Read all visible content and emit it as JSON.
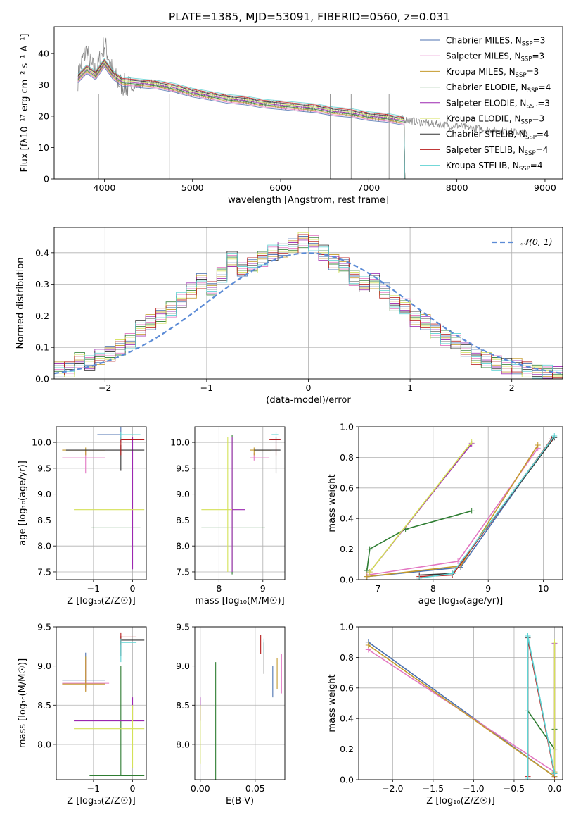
{
  "figure_title": "PLATE=1385, MJD=53091, FIBERID=0560, z=0.031",
  "series_styles": [
    {
      "name": "Chabrier MILES, N_SSP=3",
      "legend": "Chabrier MILES, N",
      "sub": "SSP",
      "tail": "=3",
      "color": "#4c72b0"
    },
    {
      "name": "Salpeter MILES, N_SSP=3",
      "legend": "Salpeter MILES, N",
      "sub": "SSP",
      "tail": "=3",
      "color": "#e377c2"
    },
    {
      "name": "Kroupa MILES, N_SSP=3",
      "legend": "Kroupa MILES, N",
      "sub": "SSP",
      "tail": "=3",
      "color": "#c49a2c"
    },
    {
      "name": "Chabrier ELODIE, N_SSP=4",
      "legend": "Chabrier ELODIE, N",
      "sub": "SSP",
      "tail": "=4",
      "color": "#2e7d32"
    },
    {
      "name": "Salpeter ELODIE, N_SSP=3",
      "legend": "Salpeter ELODIE, N",
      "sub": "SSP",
      "tail": "=3",
      "color": "#9c27b0"
    },
    {
      "name": "Kroupa ELODIE, N_SSP=3",
      "legend": "Kroupa ELODIE, N",
      "sub": "SSP",
      "tail": "=3",
      "color": "#d4e157"
    },
    {
      "name": "Chabrier STELIB, N_SSP=4",
      "legend": "Chabrier STELIB, N",
      "sub": "SSP",
      "tail": "=4",
      "color": "#333333"
    },
    {
      "name": "Salpeter STELIB, N_SSP=4",
      "legend": "Salpeter STELIB, N",
      "sub": "SSP",
      "tail": "=4",
      "color": "#b71c1c"
    },
    {
      "name": "Kroupa STELIB, N_SSP=4",
      "legend": "Kroupa STELIB, N",
      "sub": "SSP",
      "tail": "=4",
      "color": "#5fd3d3"
    }
  ],
  "chart_data": [
    {
      "id": "spectrum",
      "type": "line",
      "xlabel": "wavelength [Angstrom, rest frame]",
      "ylabel": "Flux [fλ10⁻¹⁷ erg cm⁻² s⁻¹ A⁻¹]",
      "xlim": [
        3430,
        9200
      ],
      "ylim": [
        0,
        48.5
      ],
      "xticks": [
        4000,
        5000,
        6000,
        7000,
        8000,
        9000
      ],
      "yticks": [
        0,
        10,
        20,
        30,
        40
      ],
      "data_color": "#7f7f7f",
      "data_x": [
        3700,
        3750,
        3800,
        3850,
        3900,
        3950,
        4000,
        4050,
        4100,
        4150,
        4200,
        4300,
        4400,
        4500,
        4600,
        4700,
        4800,
        4900,
        5000,
        5100,
        5200,
        5300,
        5400,
        5500,
        5600,
        5700,
        5800,
        5900,
        6000,
        6100,
        6200,
        6300,
        6400,
        6500,
        6600,
        6700,
        6800,
        6900,
        7000,
        7100,
        7200,
        7300,
        7400,
        7500,
        7600,
        7700,
        7800,
        7900,
        8000,
        8100,
        8200,
        8300,
        8400,
        8500,
        8600,
        8700,
        8800
      ],
      "data_y": [
        32,
        38,
        41,
        36,
        34,
        38,
        43,
        39,
        33,
        31,
        30,
        29,
        30,
        31,
        30,
        29,
        28.5,
        28,
        27.5,
        27,
        26.5,
        26,
        25.5,
        25,
        25,
        24.5,
        24,
        24,
        23.5,
        23,
        23,
        22.5,
        22.5,
        22,
        21.5,
        21,
        21,
        20.5,
        20,
        19.5,
        19.5,
        19,
        19,
        18.5,
        18,
        17.5,
        17.5,
        17,
        17,
        16.5,
        16,
        16,
        15.5,
        15.5,
        15,
        15,
        14.5
      ],
      "model_x": [
        3700,
        3800,
        3900,
        4000,
        4100,
        4200,
        4400,
        4600,
        4800,
        5000,
        5200,
        5400,
        5600,
        5800,
        6000,
        6200,
        6400,
        6600,
        6800,
        7000,
        7200,
        7300,
        7400,
        7410
      ],
      "model_y": [
        32,
        35,
        33,
        37,
        33,
        31,
        30.5,
        30,
        29,
        27.5,
        26.5,
        25.5,
        25,
        24,
        23.5,
        23,
        22.5,
        21.5,
        21,
        20,
        19.5,
        19,
        18.5,
        0
      ],
      "absorption_lines_x": [
        3934,
        4737,
        6563,
        6800,
        7230
      ]
    },
    {
      "id": "residuals",
      "type": "step",
      "xlabel": "(data-model)/error",
      "ylabel": "Normed distribution",
      "xlim": [
        -2.5,
        2.5
      ],
      "ylim": [
        0,
        0.48
      ],
      "xticks": [
        -2,
        -1,
        0,
        1,
        2
      ],
      "yticks": [
        0.0,
        0.1,
        0.2,
        0.3,
        0.4
      ],
      "legend": "𝒩(0, 1)",
      "normal_color": "#5b8bd6",
      "bin_width": 0.1,
      "bin_start": -2.5,
      "values": [
        0.03,
        0.03,
        0.06,
        0.05,
        0.07,
        0.08,
        0.1,
        0.12,
        0.16,
        0.18,
        0.2,
        0.22,
        0.25,
        0.28,
        0.31,
        0.29,
        0.33,
        0.38,
        0.35,
        0.36,
        0.38,
        0.4,
        0.41,
        0.42,
        0.44,
        0.43,
        0.4,
        0.37,
        0.36,
        0.32,
        0.3,
        0.31,
        0.28,
        0.24,
        0.23,
        0.19,
        0.18,
        0.15,
        0.13,
        0.12,
        0.09,
        0.07,
        0.06,
        0.05,
        0.04,
        0.04,
        0.03,
        0.02,
        0.02,
        0.015
      ]
    },
    {
      "id": "age_vs_Z",
      "type": "errorbar",
      "xlabel": "Z [log₁₀(Z/Z☉)]",
      "ylabel": "age  [log₁₀(age/yr)]",
      "xlim": [
        -1.95,
        0.35
      ],
      "ylim": [
        7.35,
        10.3
      ],
      "xticks": [
        -1,
        0
      ],
      "yticks": [
        7.5,
        8.0,
        8.5,
        9.0,
        9.5,
        10.0
      ],
      "points": [
        {
          "s": 0,
          "x": -0.3,
          "y": 10.15,
          "xe": [
            0.6,
            0.0
          ],
          "ye": [
            0.15,
            0.15
          ]
        },
        {
          "s": 1,
          "x": -1.2,
          "y": 9.7,
          "xe": [
            0.6,
            0.5
          ],
          "ye": [
            0.3,
            0.15
          ]
        },
        {
          "s": 2,
          "x": -1.2,
          "y": 9.85,
          "xe": [
            0.6,
            0.5
          ],
          "ye": [
            0.1,
            0.05
          ]
        },
        {
          "s": 3,
          "x": -1.05,
          "y": 8.35,
          "xe": [
            0.0,
            1.25
          ],
          "ye": [
            0.0,
            0.0
          ]
        },
        {
          "s": 4,
          "x": 0.0,
          "y": 10.05,
          "xe": [
            0.0,
            0.05
          ],
          "ye": [
            2.5,
            0.05
          ]
        },
        {
          "s": 5,
          "x": -1.5,
          "y": 8.7,
          "xe": [
            0.0,
            1.8
          ],
          "ye": [
            0.0,
            0.0
          ]
        },
        {
          "s": 6,
          "x": -0.3,
          "y": 9.85,
          "xe": [
            1.4,
            0.6
          ],
          "ye": [
            0.4,
            0.1
          ]
        },
        {
          "s": 7,
          "x": -0.3,
          "y": 10.05,
          "xe": [
            0.0,
            0.6
          ],
          "ye": [
            0.3,
            0.05
          ]
        },
        {
          "s": 8,
          "x": -0.3,
          "y": 10.15,
          "xe": [
            0.0,
            0.5
          ],
          "ye": [
            0.1,
            0.05
          ]
        }
      ]
    },
    {
      "id": "age_vs_mass",
      "type": "errorbar",
      "xlabel": "mass [log₁₀(M/M☉)]",
      "ylabel": "",
      "xlim": [
        7.45,
        9.5
      ],
      "ylim": [
        7.35,
        10.3
      ],
      "xticks": [
        8,
        9
      ],
      "yticks": [
        7.5,
        8.0,
        8.5,
        9.0,
        9.5,
        10.0
      ],
      "points": [
        {
          "s": 0,
          "x": 9.3,
          "y": 10.05,
          "xe": [
            0.1,
            0.1
          ],
          "ye": [
            0.1,
            0.05
          ]
        },
        {
          "s": 1,
          "x": 8.8,
          "y": 9.7,
          "xe": [
            0.1,
            0.35
          ],
          "ye": [
            0.05,
            0.1
          ]
        },
        {
          "s": 2,
          "x": 8.8,
          "y": 9.85,
          "xe": [
            0.1,
            0.4
          ],
          "ye": [
            0.1,
            0.05
          ]
        },
        {
          "s": 3,
          "x": 8.3,
          "y": 8.35,
          "xe": [
            0.7,
            0.75
          ],
          "ye": [
            0.9,
            1.8
          ]
        },
        {
          "s": 4,
          "x": 8.3,
          "y": 8.7,
          "xe": [
            0.0,
            0.3
          ],
          "ye": [
            1.2,
            1.4
          ]
        },
        {
          "s": 5,
          "x": 8.2,
          "y": 8.7,
          "xe": [
            0.6,
            0.1
          ],
          "ye": [
            1.2,
            1.4
          ]
        },
        {
          "s": 6,
          "x": 9.3,
          "y": 9.85,
          "xe": [
            0.5,
            0.1
          ],
          "ye": [
            0.45,
            0.1
          ]
        },
        {
          "s": 7,
          "x": 9.3,
          "y": 10.05,
          "xe": [
            0.15,
            0.1
          ],
          "ye": [
            0.3,
            0.05
          ]
        },
        {
          "s": 8,
          "x": 9.3,
          "y": 10.15,
          "xe": [
            0.1,
            0.05
          ],
          "ye": [
            0.1,
            0.05
          ]
        }
      ]
    },
    {
      "id": "mass_weight_vs_age",
      "type": "line",
      "xlabel": "age  [log₁₀(age/yr)]",
      "ylabel": "mass weight",
      "xlim": [
        6.65,
        10.35
      ],
      "ylim": [
        0,
        1.0
      ],
      "xticks": [
        7,
        8,
        9,
        10
      ],
      "yticks": [
        0.0,
        0.2,
        0.4,
        0.6,
        0.8,
        1.0
      ],
      "series": [
        {
          "s": 0,
          "x": [
            6.8,
            8.5,
            10.15
          ],
          "y": [
            0.02,
            0.08,
            0.92
          ]
        },
        {
          "s": 1,
          "x": [
            6.8,
            8.45,
            9.9
          ],
          "y": [
            0.03,
            0.12,
            0.86
          ]
        },
        {
          "s": 2,
          "x": [
            6.8,
            8.5,
            9.9
          ],
          "y": [
            0.02,
            0.09,
            0.88
          ]
        },
        {
          "s": 3,
          "x": [
            6.8,
            6.85,
            7.5,
            8.7
          ],
          "y": [
            0.06,
            0.2,
            0.33,
            0.45
          ]
        },
        {
          "s": 4,
          "x": [
            6.85,
            8.7
          ],
          "y": [
            0.05,
            0.89
          ]
        },
        {
          "s": 5,
          "x": [
            6.85,
            8.7
          ],
          "y": [
            0.05,
            0.9
          ]
        },
        {
          "s": 6,
          "x": [
            7.75,
            8.35,
            10.2
          ],
          "y": [
            0.03,
            0.04,
            0.93
          ]
        },
        {
          "s": 7,
          "x": [
            7.75,
            8.35,
            10.15
          ],
          "y": [
            0.02,
            0.03,
            0.92
          ]
        },
        {
          "s": 8,
          "x": [
            7.75,
            8.35,
            10.2
          ],
          "y": [
            0.01,
            0.04,
            0.94
          ]
        }
      ]
    },
    {
      "id": "mass_vs_Z",
      "type": "errorbar",
      "xlabel": "Z [log₁₀(Z/Z☉)]",
      "ylabel": "mass [log₁₀(M/M☉)]",
      "xlim": [
        -1.95,
        0.35
      ],
      "ylim": [
        7.55,
        9.5
      ],
      "xticks": [
        -1,
        0
      ],
      "yticks": [
        8.0,
        8.5,
        9.0,
        9.5
      ],
      "points": [
        {
          "s": 0,
          "x": -1.2,
          "y": 8.82,
          "xe": [
            0.6,
            0.5
          ],
          "ye": [
            0.1,
            0.35
          ]
        },
        {
          "s": 1,
          "x": -1.2,
          "y": 8.78,
          "xe": [
            0.6,
            0.6
          ],
          "ye": [
            0.1,
            0.3
          ]
        },
        {
          "s": 2,
          "x": -1.2,
          "y": 8.77,
          "xe": [
            0.6,
            0.5
          ],
          "ye": [
            0.1,
            0.35
          ]
        },
        {
          "s": 3,
          "x": -0.3,
          "y": 7.6,
          "xe": [
            0.8,
            0.6
          ],
          "ye": [
            0.0,
            1.4
          ]
        },
        {
          "s": 4,
          "x": 0.0,
          "y": 8.3,
          "xe": [
            1.5,
            0.3
          ],
          "ye": [
            0.0,
            0.3
          ]
        },
        {
          "s": 5,
          "x": 0.0,
          "y": 8.2,
          "xe": [
            1.5,
            0.3
          ],
          "ye": [
            0.5,
            0.3
          ]
        },
        {
          "s": 6,
          "x": -0.3,
          "y": 9.33,
          "xe": [
            0.0,
            0.6
          ],
          "ye": [
            0.2,
            0.05
          ]
        },
        {
          "s": 7,
          "x": -0.3,
          "y": 9.37,
          "xe": [
            0.0,
            0.4
          ],
          "ye": [
            0.1,
            0.05
          ]
        },
        {
          "s": 8,
          "x": -0.3,
          "y": 9.3,
          "xe": [
            0.0,
            0.4
          ],
          "ye": [
            0.25,
            0.05
          ]
        }
      ]
    },
    {
      "id": "mass_vs_ebv",
      "type": "errorbar",
      "xlabel": "E(B-V)",
      "ylabel": "",
      "xlim": [
        -0.005,
        0.077
      ],
      "ylim": [
        7.55,
        9.5
      ],
      "xticks": [
        0.0,
        0.05
      ],
      "yticks": [
        8.0,
        8.5,
        9.0,
        9.5
      ],
      "points": [
        {
          "s": 0,
          "x": 0.066,
          "y": 8.8,
          "xe": [
            0.0,
            0.0
          ],
          "ye": [
            0.2,
            0.2
          ]
        },
        {
          "s": 1,
          "x": 0.074,
          "y": 8.95,
          "xe": [
            0.0,
            0.0
          ],
          "ye": [
            0.3,
            0.2
          ]
        },
        {
          "s": 2,
          "x": 0.07,
          "y": 8.9,
          "xe": [
            0.0,
            0.0
          ],
          "ye": [
            0.2,
            0.2
          ]
        },
        {
          "s": 3,
          "x": 0.014,
          "y": 8.3,
          "xe": [
            0.0,
            0.0
          ],
          "ye": [
            0.75,
            0.75
          ]
        },
        {
          "s": 4,
          "x": 0.0,
          "y": 8.5,
          "xe": [
            0.0,
            0.0
          ],
          "ye": [
            0.2,
            0.1
          ]
        },
        {
          "s": 5,
          "x": 0.0,
          "y": 8.1,
          "xe": [
            0.0,
            0.0
          ],
          "ye": [
            0.35,
            0.4
          ]
        },
        {
          "s": 6,
          "x": 0.058,
          "y": 9.1,
          "xe": [
            0.0,
            0.0
          ],
          "ye": [
            0.2,
            0.2
          ]
        },
        {
          "s": 7,
          "x": 0.055,
          "y": 9.25,
          "xe": [
            0.0,
            0.0
          ],
          "ye": [
            0.1,
            0.15
          ]
        },
        {
          "s": 8,
          "x": 0.058,
          "y": 9.25,
          "xe": [
            0.0,
            0.0
          ],
          "ye": [
            0.1,
            0.1
          ]
        }
      ]
    },
    {
      "id": "mass_weight_vs_Z",
      "type": "line",
      "xlabel": "Z [log₁₀(Z/Z☉)]",
      "ylabel": "mass weight",
      "xlim": [
        -2.42,
        0.1
      ],
      "ylim": [
        0,
        1.0
      ],
      "xticks": [
        -2.0,
        -1.5,
        -1.0,
        -0.5,
        0.0
      ],
      "yticks": [
        0.0,
        0.2,
        0.4,
        0.6,
        0.8,
        1.0
      ],
      "series": [
        {
          "s": 0,
          "x": [
            -2.3,
            0.0
          ],
          "y": [
            0.9,
            0.02
          ]
        },
        {
          "s": 1,
          "x": [
            -2.3,
            0.0
          ],
          "y": [
            0.85,
            0.05
          ]
        },
        {
          "s": 2,
          "x": [
            -2.3,
            0.0
          ],
          "y": [
            0.88,
            0.02
          ]
        },
        {
          "s": 3,
          "x": [
            -0.33,
            0.0,
            0.0
          ],
          "y": [
            0.45,
            0.2,
            0.33
          ]
        },
        {
          "s": 4,
          "x": [
            0.0,
            0.0
          ],
          "y": [
            0.05,
            0.89
          ]
        },
        {
          "s": 5,
          "x": [
            0.0,
            0.0
          ],
          "y": [
            0.05,
            0.9
          ]
        },
        {
          "s": 6,
          "x": [
            -0.33,
            -0.33,
            0.0
          ],
          "y": [
            0.03,
            0.93,
            0.04
          ]
        },
        {
          "s": 7,
          "x": [
            -0.33,
            -0.33,
            0.0
          ],
          "y": [
            0.02,
            0.92,
            0.03
          ]
        },
        {
          "s": 8,
          "x": [
            -0.33,
            -0.33,
            0.0
          ],
          "y": [
            0.01,
            0.94,
            0.04
          ]
        }
      ]
    }
  ]
}
